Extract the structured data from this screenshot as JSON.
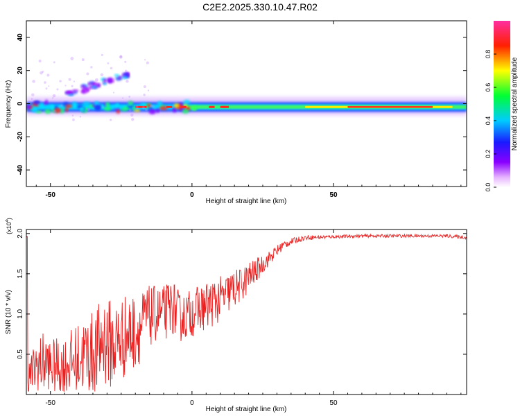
{
  "title": "C2E2.2025.330.10.47.R02",
  "chart_data": [
    {
      "type": "heatmap",
      "xlabel": "Height of straight line (km)",
      "ylabel": "Frequency (Hz)",
      "xlim": [
        -58.5,
        97
      ],
      "ylim": [
        -50,
        50
      ],
      "xticks": [
        -50,
        0,
        50
      ],
      "yticks": [
        -40,
        -20,
        0,
        20,
        40
      ],
      "grid": false,
      "colorbar": {
        "label": "Normalized spectral amplitude",
        "ticks": [
          "0.0",
          "0.2",
          "0.4",
          "0.6",
          "0.8"
        ],
        "range": [
          0,
          1
        ],
        "colormap": "rainbow (purple-blue-cyan-green-yellow-red-pink)"
      },
      "features": [
        {
          "name": "main band",
          "x_range": [
            -58.5,
            97
          ],
          "frequency": -2,
          "amplitude": 0.75
        },
        {
          "name": "upper branch",
          "x_range": [
            -45,
            -22
          ],
          "frequency_range": [
            5,
            18
          ],
          "amplitude": 0.4
        }
      ],
      "colors": {
        "band_low": "#9b00ff",
        "band_mid": "#00d7ff",
        "band_high": "#ff2222"
      }
    },
    {
      "type": "line",
      "xlabel": "Height of straight line (km)",
      "ylabel": "SNR (10 * v/v)",
      "multiplier": "(x10",
      "multiplier_exponent": "4",
      "multiplier_close": ")",
      "xlim": [
        -58.5,
        97
      ],
      "ylim": [
        0,
        2.05
      ],
      "xticks": [
        -50,
        0,
        50
      ],
      "yticks": [
        "0.5",
        "1.0",
        "1.5",
        "2.0"
      ],
      "series_color": "#e82020",
      "x": [
        -58,
        -55,
        -52,
        -49,
        -46,
        -43,
        -40,
        -37,
        -34,
        -31,
        -28,
        -25,
        -22,
        -19,
        -16,
        -13,
        -10,
        -7,
        -4,
        -1,
        2,
        5,
        8,
        11,
        14,
        17,
        20,
        23,
        26,
        29,
        32,
        35,
        40,
        50,
        60,
        70,
        80,
        90,
        97
      ],
      "y": [
        0.2,
        0.35,
        0.4,
        0.35,
        0.35,
        0.4,
        0.45,
        0.5,
        0.5,
        0.7,
        0.6,
        0.7,
        0.75,
        0.8,
        0.95,
        1.0,
        1.0,
        1.1,
        0.95,
        1.0,
        1.05,
        1.1,
        1.15,
        1.2,
        1.3,
        1.35,
        1.45,
        1.55,
        1.65,
        1.75,
        1.85,
        1.9,
        1.95,
        1.96,
        1.97,
        1.97,
        1.97,
        1.97,
        1.95
      ],
      "noise_amplitude": [
        0.2,
        0.35,
        0.4,
        0.35,
        0.35,
        0.4,
        0.45,
        0.5,
        0.55,
        0.6,
        0.55,
        0.55,
        0.5,
        0.45,
        0.4,
        0.35,
        0.35,
        0.35,
        0.3,
        0.3,
        0.3,
        0.3,
        0.3,
        0.28,
        0.25,
        0.22,
        0.2,
        0.15,
        0.1,
        0.08,
        0.06,
        0.04,
        0.03,
        0.02,
        0.02,
        0.02,
        0.02,
        0.02,
        0.02
      ]
    }
  ]
}
